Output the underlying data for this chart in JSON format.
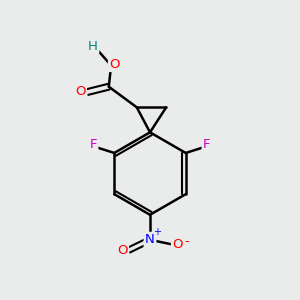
{
  "background_color": "#eaecec",
  "bond_color": "#000000",
  "atom_colors": {
    "O": "#ff0000",
    "F": "#cc00cc",
    "N": "#0000ff",
    "H": "#008888",
    "C": "#000000"
  },
  "figsize": [
    3.0,
    3.0
  ],
  "dpi": 100
}
